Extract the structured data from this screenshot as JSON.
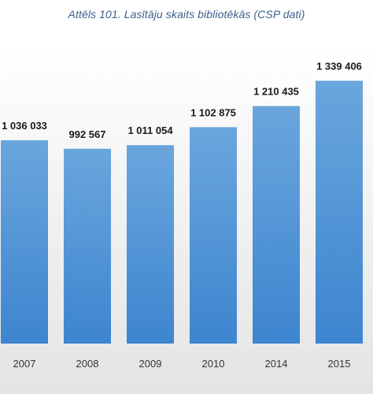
{
  "chart_data": {
    "type": "bar",
    "title": "Attēls 101. Lasītāju skaits bibliotēkās (CSP dati)",
    "categories": [
      "2007",
      "2008",
      "2009",
      "2010",
      "2014",
      "2015"
    ],
    "values": [
      1036033,
      992567,
      1011054,
      1102875,
      1210435,
      1339406
    ],
    "value_labels": [
      "1 036 033",
      "992 567",
      "1 011 054",
      "1 102 875",
      "1 210 435",
      "1 339 406"
    ],
    "xlabel": "",
    "ylabel": "",
    "ylim": [
      0,
      1500000
    ],
    "grid": false,
    "legend": "none",
    "bar_color_top": "#6aa6dd",
    "bar_color_bottom": "#3d85cf",
    "title_color": "#3a5f8a"
  }
}
